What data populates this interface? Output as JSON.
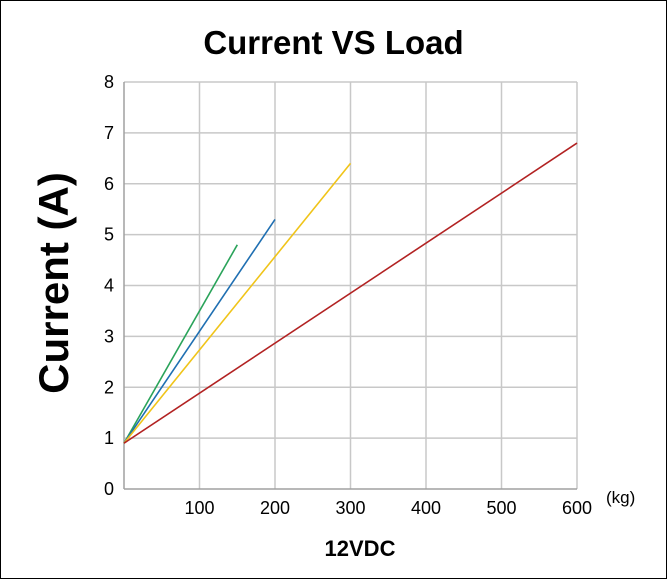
{
  "chart_data": {
    "type": "line",
    "title": "Current VS Load",
    "xlabel": "12VDC",
    "ylabel": "Current (A)",
    "x_unit": "(kg)",
    "xlim": [
      0,
      600
    ],
    "ylim": [
      0,
      8
    ],
    "x_ticks": [
      100,
      200,
      300,
      400,
      500,
      600
    ],
    "y_ticks": [
      0,
      1,
      2,
      3,
      4,
      5,
      6,
      7,
      8
    ],
    "grid": true,
    "legend": "none",
    "colors": {
      "grid": "#c8c8c8",
      "axis": "#a0a0a0"
    },
    "series": [
      {
        "color": "#2aa35a",
        "x": [
          0,
          150
        ],
        "y": [
          0.9,
          4.8
        ]
      },
      {
        "color": "#1f6fb2",
        "x": [
          0,
          200
        ],
        "y": [
          0.9,
          5.3
        ]
      },
      {
        "color": "#f0c419",
        "x": [
          0,
          300
        ],
        "y": [
          0.9,
          6.4
        ]
      },
      {
        "color": "#b22222",
        "x": [
          0,
          600
        ],
        "y": [
          0.9,
          6.8
        ]
      }
    ]
  }
}
